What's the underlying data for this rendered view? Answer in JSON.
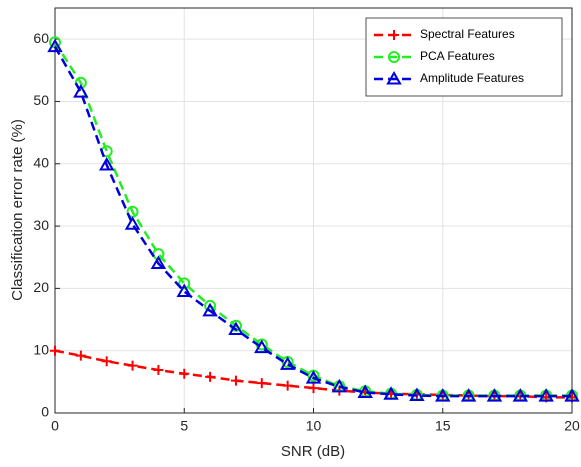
{
  "chart_data": {
    "type": "line",
    "x_label": "SNR (dB)",
    "y_label": "Classification error rate (%)",
    "x": [
      0,
      1,
      2,
      3,
      4,
      5,
      6,
      7,
      8,
      9,
      10,
      11,
      12,
      13,
      14,
      15,
      16,
      17,
      18,
      19,
      20
    ],
    "series": [
      {
        "name": "Spectral Features",
        "color": "#ff0000",
        "marker": "plus",
        "values": [
          10,
          9.2,
          8.3,
          7.6,
          6.9,
          6.3,
          5.8,
          5.2,
          4.8,
          4.4,
          4.0,
          3.6,
          3.3,
          3.1,
          3.0,
          2.9,
          2.8,
          2.7,
          2.7,
          2.5,
          2.5
        ]
      },
      {
        "name": "PCA Features",
        "color": "#22ee22",
        "marker": "circle",
        "values": [
          59.5,
          53,
          42,
          32.3,
          25.5,
          20.8,
          17.2,
          14,
          11,
          8.2,
          6,
          4.3,
          3.5,
          3.1,
          2.9,
          2.8,
          2.8,
          2.8,
          2.8,
          2.8,
          2.8
        ]
      },
      {
        "name": "Amplitude Features",
        "color": "#0000dd",
        "marker": "triangle",
        "values": [
          58.8,
          51.5,
          39.8,
          30.3,
          24,
          19.5,
          16.4,
          13.4,
          10.5,
          7.8,
          5.6,
          4.2,
          3.3,
          3.0,
          2.8,
          2.7,
          2.7,
          2.7,
          2.7,
          2.7,
          2.7
        ]
      }
    ],
    "xlim": [
      0,
      20
    ],
    "xticks": [
      0,
      5,
      10,
      15,
      20
    ],
    "ylim": [
      0,
      65
    ],
    "yticks": [
      0,
      10,
      20,
      30,
      40,
      50,
      60
    ],
    "grid": true,
    "line_style": "dashed",
    "legend": "northeast"
  }
}
